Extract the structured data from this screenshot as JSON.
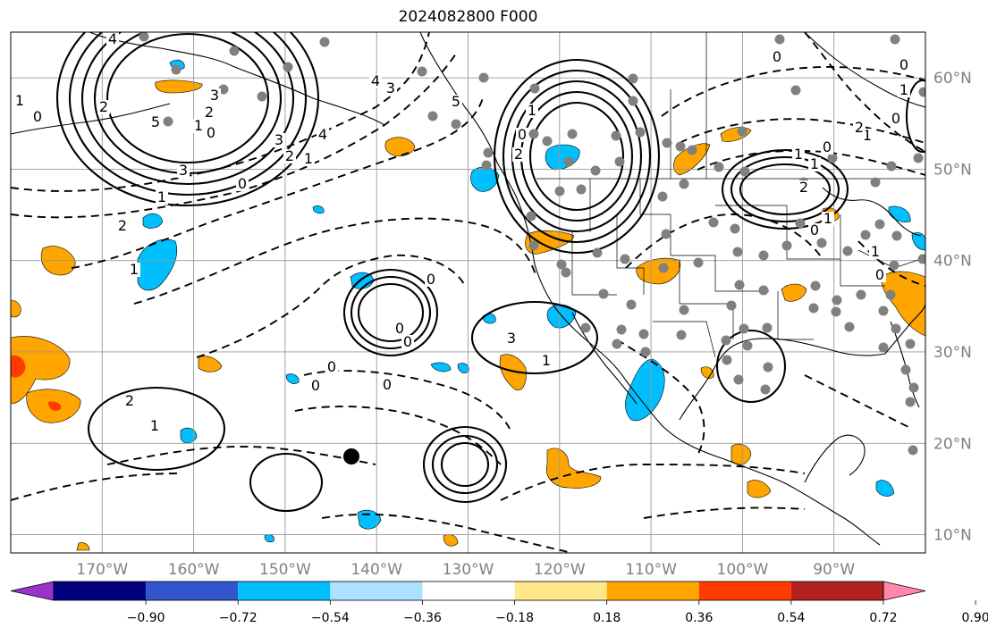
{
  "title": "2024082800 F000",
  "map": {
    "lon_range": [
      -180,
      -80
    ],
    "lat_range": [
      8,
      65
    ],
    "lon_ticks": [
      {
        "value": -170,
        "label": "170°W"
      },
      {
        "value": -160,
        "label": "160°W"
      },
      {
        "value": -150,
        "label": "150°W"
      },
      {
        "value": -140,
        "label": "140°W"
      },
      {
        "value": -130,
        "label": "130°W"
      },
      {
        "value": -120,
        "label": "120°W"
      },
      {
        "value": -110,
        "label": "110°W"
      },
      {
        "value": -100,
        "label": "100°W"
      },
      {
        "value": -90,
        "label": "90°W"
      }
    ],
    "lat_ticks": [
      {
        "value": 10,
        "label": "10°N"
      },
      {
        "value": 20,
        "label": "20°N"
      },
      {
        "value": 30,
        "label": "30°N"
      },
      {
        "value": 40,
        "label": "40°N"
      },
      {
        "value": 50,
        "label": "50°N"
      },
      {
        "value": 60,
        "label": "60°N"
      }
    ],
    "grid": true,
    "tick_label_color": "#808080"
  },
  "colorbar": {
    "labels": [
      "−0.90",
      "−0.72",
      "−0.54",
      "−0.36",
      "−0.18",
      "0.18",
      "0.36",
      "0.54",
      "0.72",
      "0.90"
    ],
    "colors": [
      "#9933cc",
      "#000080",
      "#3355cc",
      "#00bfff",
      "#aee0ff",
      "#ffffff",
      "#ffe88a",
      "#ffa500",
      "#ff3c00",
      "#b22222",
      "#ff88aa"
    ]
  },
  "contour_labels": [
    "4",
    "5",
    "0",
    "2",
    "1",
    "3",
    "4",
    "3",
    "5",
    "0",
    "1",
    "2",
    "3",
    "4",
    "2",
    "1",
    "0",
    "3",
    "1",
    "2",
    "1",
    "0",
    "1",
    "2",
    "0",
    "0",
    "1",
    "0",
    "1",
    "2",
    "1",
    "1",
    "0",
    "2",
    "1",
    "0",
    "1",
    "0",
    "0",
    "0",
    "0",
    "3",
    "1",
    "0",
    "0",
    "0",
    "2",
    "1"
  ],
  "legend_colors": {
    "orange": "#ffa500",
    "red": "#ff3c00",
    "blue": "#00bfff",
    "gray_station": "#808080"
  }
}
